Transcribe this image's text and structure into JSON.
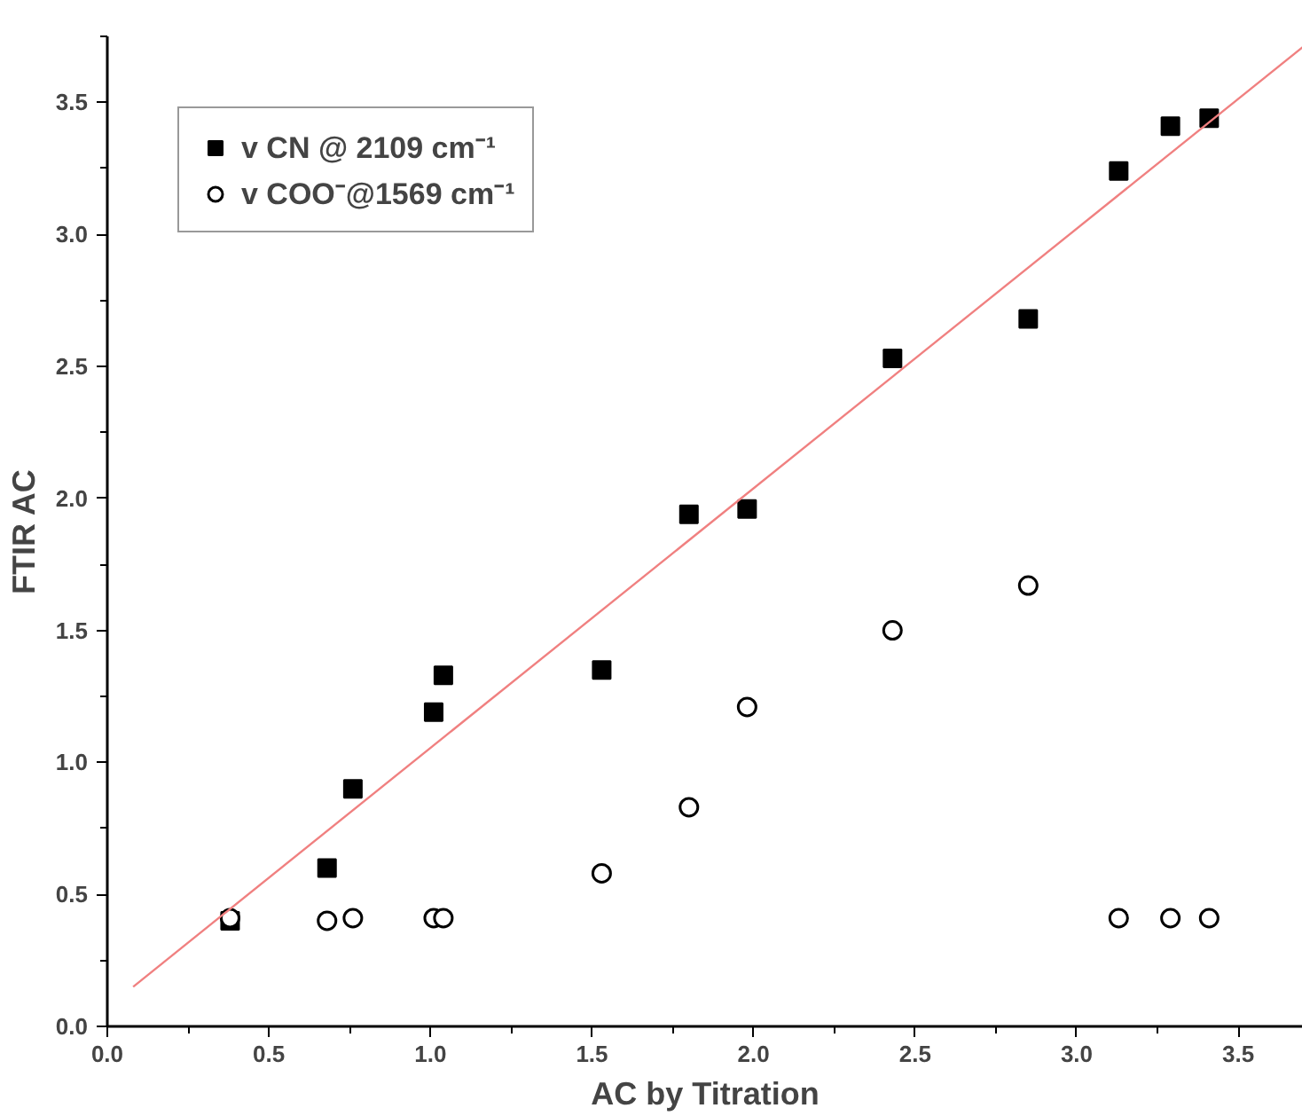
{
  "chart_data": {
    "type": "scatter",
    "xlabel": "AC by Titration",
    "ylabel": "FTIR AC",
    "xlim": [
      0,
      3.7
    ],
    "ylim": [
      0,
      3.75
    ],
    "xticks": [
      {
        "value": 0,
        "label": "0.0"
      },
      0.5,
      {
        "value": 1,
        "label": "1.0"
      },
      1.5,
      {
        "value": 2,
        "label": "2.0"
      },
      2.5,
      {
        "value": 3,
        "label": "3.0"
      },
      3.5
    ],
    "yticks": [
      {
        "value": 0,
        "label": "0.0"
      },
      0.5,
      {
        "value": 1,
        "label": "1.0"
      },
      1.5,
      {
        "value": 2,
        "label": "2.0"
      },
      2.5,
      {
        "value": 3,
        "label": "3.0"
      },
      3.5
    ],
    "grid": false,
    "legend": "top left",
    "series": [
      {
        "name": "v CN @ 2109 cm⁻¹",
        "color": "#000000",
        "marker": "square",
        "x": [
          0.38,
          0.68,
          0.76,
          1.01,
          1.04,
          1.53,
          1.8,
          1.98,
          2.43,
          2.85,
          3.13,
          3.29,
          3.41
        ],
        "values": [
          0.4,
          0.6,
          0.9,
          1.19,
          1.33,
          1.35,
          1.94,
          1.96,
          2.53,
          2.68,
          3.24,
          3.41,
          3.44
        ]
      },
      {
        "name": "v COO⁻@1569 cm⁻¹",
        "color": "#000000",
        "marker": "circle",
        "x": [
          0.38,
          0.68,
          0.76,
          1.01,
          1.04,
          1.53,
          1.8,
          1.98,
          2.43,
          2.85,
          3.13,
          3.29,
          3.41
        ],
        "values": [
          0.41,
          0.4,
          0.41,
          0.41,
          0.41,
          0.58,
          0.83,
          1.21,
          1.5,
          1.67,
          0.41,
          0.41,
          0.41
        ]
      },
      {
        "type": "line",
        "color": "#f08080",
        "x": [
          0.08,
          3.7
        ],
        "values": [
          0.15,
          3.71
        ]
      }
    ]
  }
}
